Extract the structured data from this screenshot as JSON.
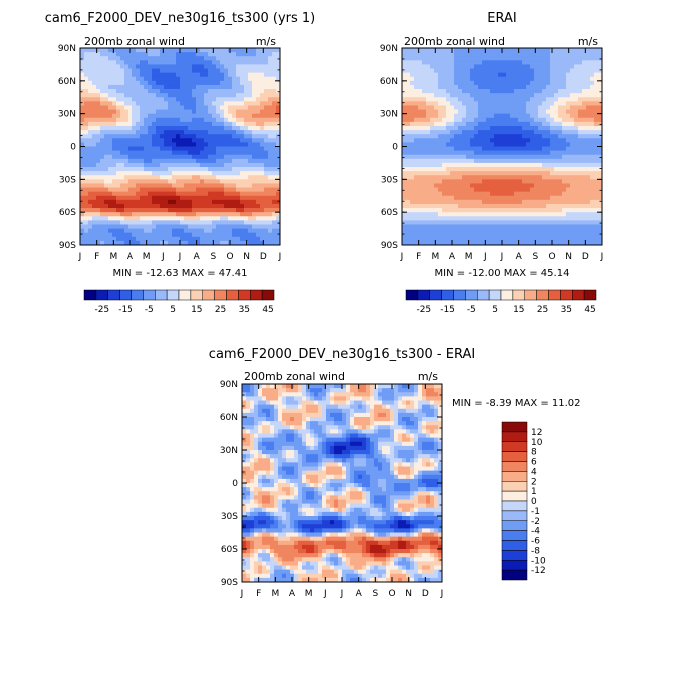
{
  "chart_data": [
    {
      "type": "heatmap",
      "title": "cam6_F2000_DEV_ne30g16_ts300 (yrs 1)",
      "subtitle": "200mb zonal wind",
      "units": "m/s",
      "x_ticks": [
        "J",
        "F",
        "M",
        "A",
        "M",
        "J",
        "J",
        "A",
        "S",
        "O",
        "N",
        "D",
        "J"
      ],
      "y_ticks": [
        "90N",
        "60N",
        "30N",
        "0",
        "30S",
        "60S",
        "90S"
      ],
      "stats": "MIN = -12.63 MAX =  47.41",
      "colorbar_labels": [
        "-25",
        "-15",
        "-5",
        "5",
        "15",
        "25",
        "35",
        "45"
      ],
      "levels": [
        -30,
        -25,
        -20,
        -15,
        -10,
        -5,
        0,
        5,
        10,
        15,
        20,
        25,
        30,
        35,
        40,
        45
      ],
      "colors": [
        "#000080",
        "#0a1cb4",
        "#1e3fd6",
        "#2f5fe6",
        "#4a7ef0",
        "#6f9cf5",
        "#9ab9f8",
        "#c5d6fb",
        "#fdeee2",
        "#fcd0b3",
        "#f8ad88",
        "#f08660",
        "#e4603f",
        "#d03a24",
        "#b01b12",
        "#880a08"
      ],
      "value_range": [
        -12.63,
        47.41
      ]
    },
    {
      "type": "heatmap",
      "title": "ERAI",
      "subtitle": "200mb zonal wind",
      "units": "m/s",
      "x_ticks": [
        "J",
        "F",
        "M",
        "A",
        "M",
        "J",
        "J",
        "A",
        "S",
        "O",
        "N",
        "D",
        "J"
      ],
      "y_ticks": [
        "90N",
        "60N",
        "30N",
        "0",
        "30S",
        "60S",
        "90S"
      ],
      "stats": "MIN = -12.00 MAX =  45.14",
      "colorbar_labels": [
        "-25",
        "-15",
        "-5",
        "5",
        "15",
        "25",
        "35",
        "45"
      ],
      "levels": [
        -30,
        -25,
        -20,
        -15,
        -10,
        -5,
        0,
        5,
        10,
        15,
        20,
        25,
        30,
        35,
        40,
        45
      ],
      "colors": [
        "#000080",
        "#0a1cb4",
        "#1e3fd6",
        "#2f5fe6",
        "#4a7ef0",
        "#6f9cf5",
        "#9ab9f8",
        "#c5d6fb",
        "#fdeee2",
        "#fcd0b3",
        "#f8ad88",
        "#f08660",
        "#e4603f",
        "#d03a24",
        "#b01b12",
        "#880a08"
      ],
      "value_range": [
        -12.0,
        45.14
      ]
    },
    {
      "type": "heatmap",
      "title": "cam6_F2000_DEV_ne30g16_ts300 - ERAI",
      "subtitle": "200mb zonal wind",
      "units": "m/s",
      "x_ticks": [
        "J",
        "F",
        "M",
        "A",
        "M",
        "J",
        "J",
        "A",
        "S",
        "O",
        "N",
        "D",
        "J"
      ],
      "y_ticks": [
        "90N",
        "60N",
        "30N",
        "0",
        "30S",
        "60S",
        "90S"
      ],
      "stats": "MIN =  -8.39 MAX =  11.02",
      "colorbar_labels": [
        "12",
        "10",
        "8",
        "6",
        "4",
        "2",
        "1",
        "0",
        "-1",
        "-2",
        "-4",
        "-6",
        "-8",
        "-10",
        "-12"
      ],
      "levels": [
        -14,
        -12,
        -10,
        -8,
        -6,
        -4,
        -2,
        -1,
        0,
        1,
        2,
        4,
        6,
        8,
        10,
        12
      ],
      "colors": [
        "#000080",
        "#0a1cb4",
        "#1e3fd6",
        "#2f5fe6",
        "#4a7ef0",
        "#6f9cf5",
        "#9ab9f8",
        "#c5d6fb",
        "#fdeee2",
        "#fcd0b3",
        "#f8ad88",
        "#f08660",
        "#e4603f",
        "#d03a24",
        "#b01b12",
        "#880a08"
      ],
      "value_range": [
        -8.39,
        11.02
      ]
    }
  ]
}
